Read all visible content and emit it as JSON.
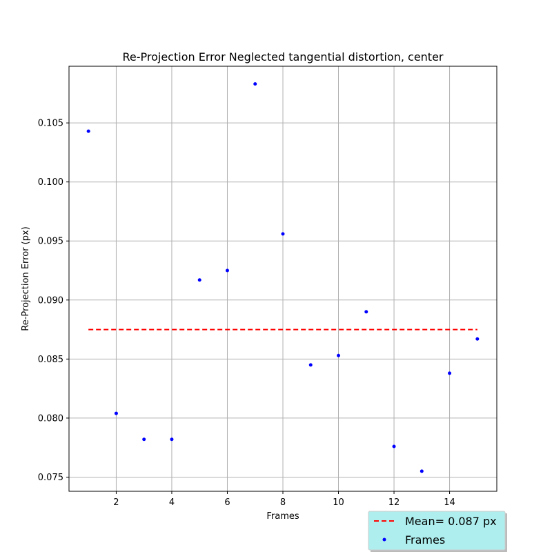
{
  "chart_data": {
    "type": "scatter",
    "title": "Re-Projection Error Neglected tangential distortion, center",
    "xlabel": "Frames",
    "ylabel": "Re-Projection Error (px)",
    "xlim": [
      0.3,
      15.7
    ],
    "ylim": [
      0.0738,
      0.1098
    ],
    "xticks": [
      2,
      4,
      6,
      8,
      10,
      12,
      14
    ],
    "yticks": [
      0.075,
      0.08,
      0.085,
      0.09,
      0.095,
      0.1,
      0.105
    ],
    "ytick_labels": [
      "0.075",
      "0.080",
      "0.085",
      "0.090",
      "0.095",
      "0.100",
      "0.105"
    ],
    "grid": true,
    "series": [
      {
        "name": "Frames",
        "kind": "scatter",
        "color": "#0000ff",
        "x": [
          1,
          2,
          3,
          4,
          5,
          6,
          7,
          8,
          9,
          10,
          11,
          12,
          13,
          14,
          15
        ],
        "y": [
          0.1043,
          0.0804,
          0.0782,
          0.0782,
          0.0917,
          0.0925,
          0.1083,
          0.0956,
          0.0845,
          0.0853,
          0.089,
          0.0776,
          0.0755,
          0.0838,
          0.0867
        ]
      },
      {
        "name": "Mean= 0.087 px",
        "kind": "line",
        "style": "dashed",
        "color": "#ff0000",
        "x": [
          1,
          15
        ],
        "y": [
          0.0875,
          0.0875
        ]
      }
    ],
    "legend": {
      "placement": "bottom-right",
      "background": "#aeeeee",
      "entries": [
        "Mean= 0.087 px",
        "Frames"
      ]
    }
  }
}
